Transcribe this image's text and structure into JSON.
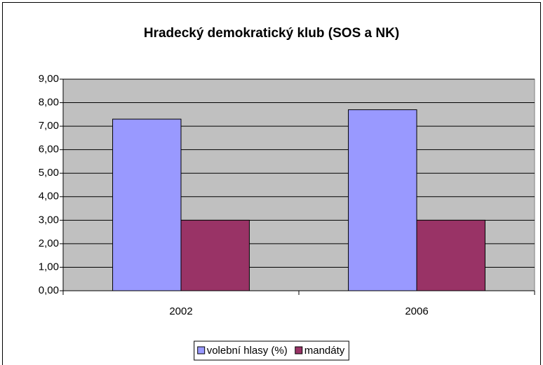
{
  "chart_data": {
    "type": "bar",
    "title": "Hradecký demokratický klub (SOS a NK)",
    "categories": [
      "2002",
      "2006"
    ],
    "series": [
      {
        "name": "volební hlasy (%)",
        "color": "#9999ff",
        "values": [
          7.3,
          7.7
        ]
      },
      {
        "name": "mandáty",
        "color": "#993366",
        "values": [
          3,
          3
        ]
      }
    ],
    "ylim": [
      0,
      9
    ],
    "yticks": [
      {
        "value": 0,
        "label": "0,00"
      },
      {
        "value": 1,
        "label": "1,00"
      },
      {
        "value": 2,
        "label": "2,00"
      },
      {
        "value": 3,
        "label": "3,00"
      },
      {
        "value": 4,
        "label": "4,00"
      },
      {
        "value": 5,
        "label": "5,00"
      },
      {
        "value": 6,
        "label": "6,00"
      },
      {
        "value": 7,
        "label": "7,00"
      },
      {
        "value": 8,
        "label": "8,00"
      },
      {
        "value": 9,
        "label": "9,00"
      }
    ],
    "grid": true,
    "legend": "bottom",
    "plot_background": "#c0c0c0"
  }
}
